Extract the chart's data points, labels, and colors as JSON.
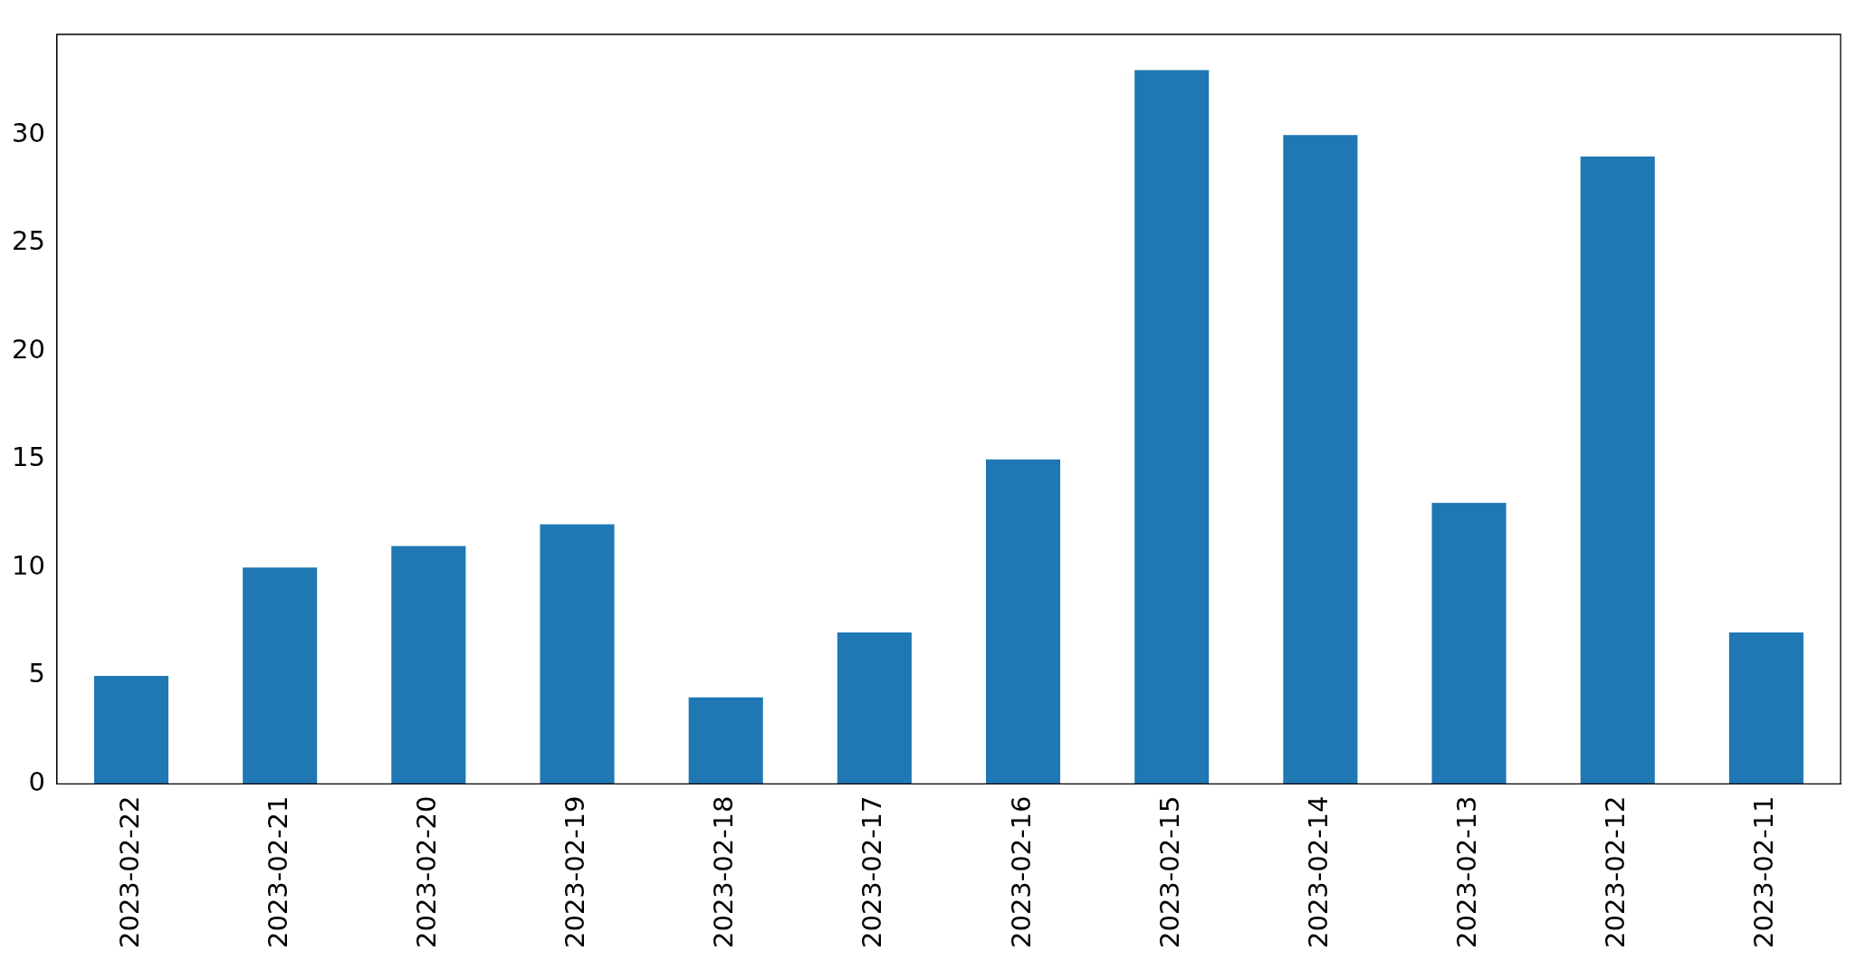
{
  "chart_data": {
    "type": "bar",
    "categories": [
      "2023-02-22",
      "2023-02-21",
      "2023-02-20",
      "2023-02-19",
      "2023-02-18",
      "2023-02-17",
      "2023-02-16",
      "2023-02-15",
      "2023-02-14",
      "2023-02-13",
      "2023-02-12",
      "2023-02-11"
    ],
    "values": [
      5,
      10,
      11,
      12,
      4,
      7,
      15,
      33,
      30,
      13,
      29,
      7
    ],
    "color": "#1f77b4",
    "ylim": [
      0,
      34.65
    ],
    "yticks": [
      0,
      5,
      10,
      15,
      20,
      25,
      30
    ]
  }
}
